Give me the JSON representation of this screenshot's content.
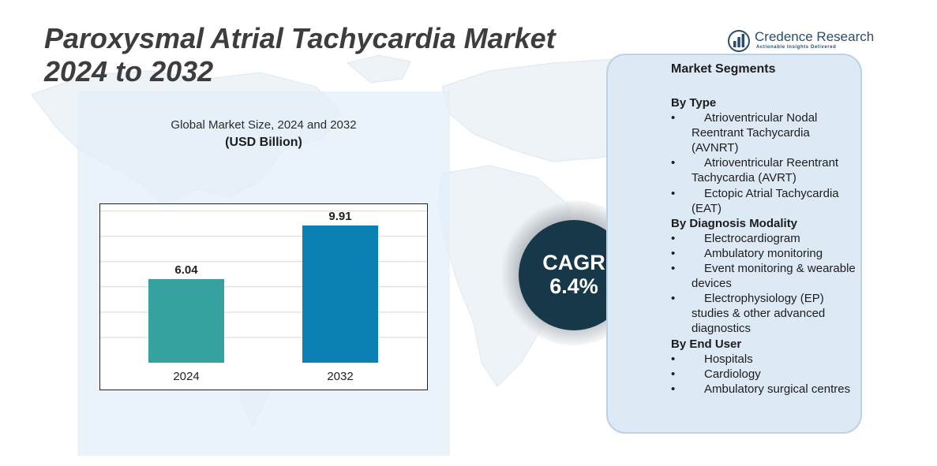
{
  "title": {
    "line1": "Paroxysmal Atrial Tachycardia Market",
    "line2": "2024 to 2032"
  },
  "logo": {
    "name": "Credence Research",
    "tagline": "Actionable Insights Delivered",
    "icon": "bar-chart-logo-icon"
  },
  "chart_data": {
    "type": "bar",
    "title": "Global Market Size, 2024 and 2032",
    "subtitle": "(USD Billion)",
    "categories": [
      "2024",
      "2032"
    ],
    "values": [
      6.04,
      9.91
    ],
    "data_labels": [
      "6.04",
      "9.91"
    ],
    "ylim": [
      0,
      11.5
    ],
    "grid": true,
    "colors": [
      "#36a2a0",
      "#0a80b5"
    ],
    "xlabel": "",
    "ylabel": ""
  },
  "cagr": {
    "label": "CAGR",
    "value": "6.4%"
  },
  "segments": {
    "heading": "Market Segments",
    "groups": [
      {
        "title": "By Type",
        "items": [
          "Atrioventricular Nodal Reentrant Tachycardia (AVNRT)",
          "Atrioventricular Reentrant Tachycardia (AVRT)",
          "Ectopic Atrial Tachycardia (EAT)"
        ]
      },
      {
        "title": "By Diagnosis Modality",
        "items": [
          "Electrocardiogram",
          "Ambulatory monitoring",
          "Event monitoring & wearable devices",
          "Electrophysiology (EP) studies & other advanced diagnostics"
        ]
      },
      {
        "title": "By End User",
        "items": [
          "Hospitals",
          "Cardiology",
          "Ambulatory surgical centres"
        ]
      }
    ]
  },
  "colors": {
    "panel": "#e4eef8",
    "segments_panel": "#dde9f5",
    "cagr_circle": "#173849",
    "bar_2024": "#36a2a0",
    "bar_2032": "#0a80b5"
  }
}
